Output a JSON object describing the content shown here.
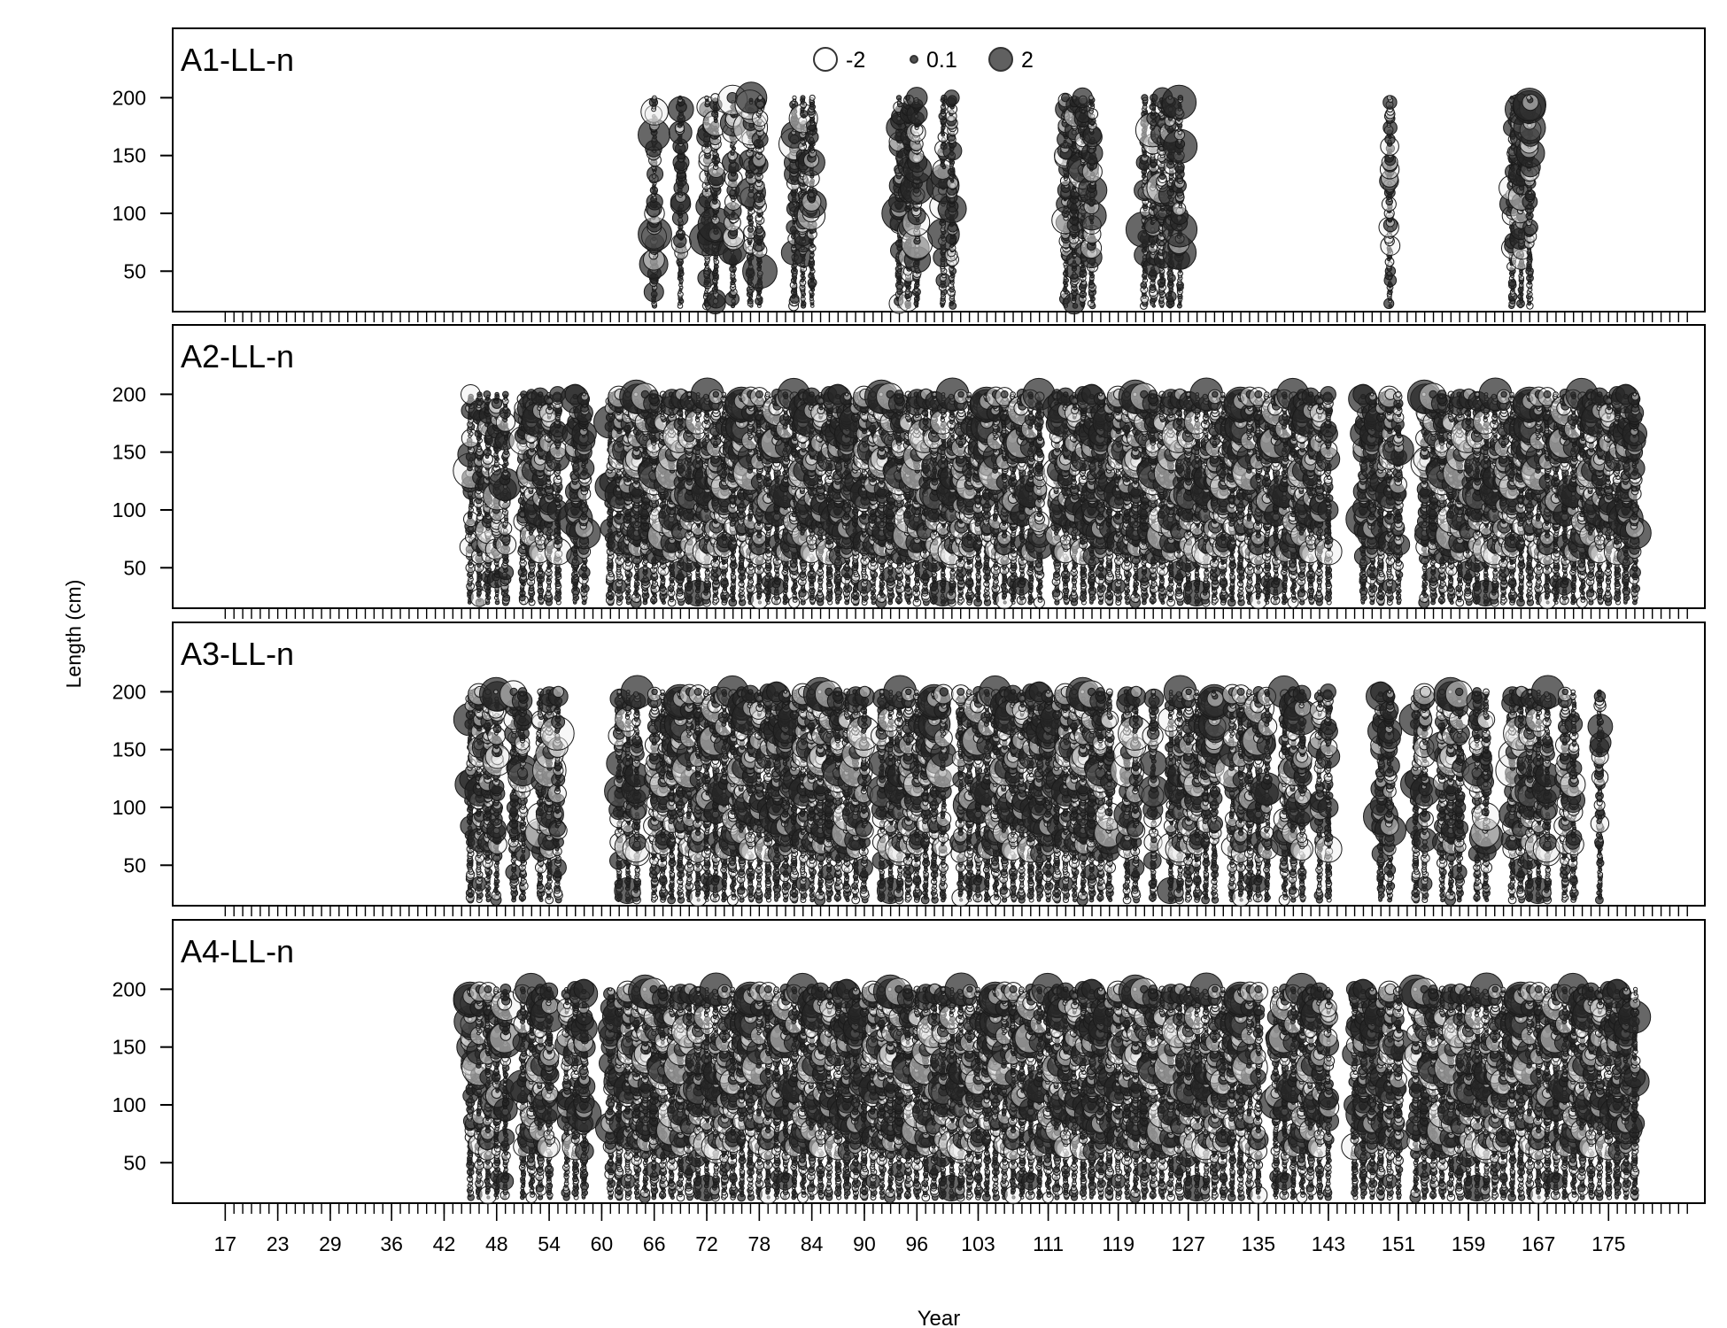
{
  "chart_data": {
    "type": "scatter",
    "subtype": "bubble residual plot",
    "xlabel": "Year",
    "ylabel": "Length (cm)",
    "x_tick_labels": [
      "17",
      "23",
      "29",
      "36",
      "42",
      "48",
      "54",
      "60",
      "66",
      "72",
      "78",
      "84",
      "90",
      "96",
      "103",
      "111",
      "119",
      "127",
      "135",
      "143",
      "151",
      "159",
      "167",
      "175"
    ],
    "x_tick_positions": [
      17,
      23,
      29,
      36,
      42,
      48,
      54,
      60,
      66,
      72,
      78,
      84,
      90,
      96,
      103,
      111,
      119,
      127,
      135,
      143,
      151,
      159,
      167,
      175
    ],
    "xlim": [
      11,
      186
    ],
    "ylim": [
      15,
      260
    ],
    "y_ticks": [
      50,
      100,
      150,
      200
    ],
    "y_tick_labels": [
      "50",
      "100",
      "150",
      "200"
    ],
    "length_bin_range": [
      20,
      200
    ],
    "length_bin_step": 2,
    "legend": {
      "position": "top-center",
      "items": [
        {
          "label": "-2",
          "value": -2,
          "fill": "none"
        },
        {
          "label": "0.1",
          "value": 0.1,
          "fill": "dark"
        },
        {
          "label": "2",
          "value": 2,
          "fill": "dark"
        }
      ]
    },
    "panels": [
      {
        "label": "A1-LL-n",
        "sample_times": [
          66,
          69,
          72,
          73,
          75,
          77,
          78,
          82,
          83,
          84,
          94,
          95,
          96,
          99,
          100,
          113,
          114,
          115,
          116,
          122,
          123,
          124,
          125,
          126,
          150,
          164,
          165,
          166
        ]
      },
      {
        "label": "A2-LL-n",
        "sample_times": [
          45,
          46,
          47,
          48,
          49,
          51,
          52,
          53,
          54,
          55,
          57,
          58,
          61,
          62,
          63,
          64,
          65,
          66,
          67,
          68,
          69,
          70,
          71,
          72,
          73,
          74,
          75,
          76,
          77,
          78,
          79,
          80,
          81,
          82,
          83,
          84,
          85,
          86,
          87,
          88,
          89,
          90,
          91,
          92,
          93,
          94,
          95,
          96,
          97,
          98,
          99,
          100,
          101,
          102,
          103,
          104,
          105,
          106,
          107,
          108,
          109,
          110,
          112,
          113,
          114,
          115,
          116,
          117,
          118,
          119,
          120,
          121,
          122,
          123,
          124,
          125,
          126,
          127,
          128,
          129,
          130,
          131,
          132,
          133,
          134,
          135,
          136,
          137,
          138,
          139,
          140,
          141,
          142,
          143,
          147,
          148,
          149,
          150,
          151,
          154,
          155,
          156,
          157,
          158,
          159,
          160,
          161,
          162,
          163,
          164,
          165,
          166,
          167,
          168,
          169,
          170,
          171,
          172,
          173,
          174,
          175,
          176,
          177,
          178
        ]
      },
      {
        "label": "A3-LL-n",
        "sample_times": [
          45,
          46,
          47,
          48,
          50,
          51,
          53,
          54,
          55,
          62,
          63,
          64,
          66,
          67,
          68,
          69,
          70,
          71,
          72,
          73,
          74,
          75,
          76,
          77,
          78,
          79,
          80,
          81,
          82,
          83,
          84,
          85,
          86,
          87,
          88,
          89,
          90,
          92,
          93,
          94,
          95,
          96,
          97,
          98,
          99,
          101,
          102,
          103,
          104,
          105,
          106,
          107,
          108,
          109,
          110,
          111,
          112,
          113,
          114,
          115,
          116,
          117,
          118,
          120,
          121,
          123,
          125,
          126,
          127,
          128,
          129,
          130,
          132,
          133,
          134,
          135,
          136,
          138,
          139,
          140,
          142,
          143,
          149,
          150,
          153,
          154,
          156,
          157,
          158,
          160,
          161,
          164,
          165,
          166,
          167,
          168,
          170,
          171,
          174
        ]
      },
      {
        "label": "A4-LL-n",
        "sample_times": [
          45,
          46,
          47,
          48,
          49,
          51,
          52,
          53,
          54,
          56,
          57,
          58,
          61,
          62,
          63,
          64,
          65,
          66,
          67,
          68,
          69,
          70,
          71,
          72,
          73,
          74,
          75,
          76,
          77,
          78,
          79,
          80,
          81,
          82,
          83,
          84,
          85,
          86,
          87,
          88,
          89,
          90,
          91,
          92,
          93,
          94,
          95,
          96,
          97,
          98,
          99,
          100,
          101,
          102,
          103,
          104,
          105,
          106,
          107,
          108,
          109,
          110,
          111,
          112,
          113,
          114,
          115,
          116,
          117,
          118,
          119,
          120,
          121,
          122,
          123,
          124,
          125,
          126,
          127,
          128,
          129,
          130,
          131,
          132,
          133,
          134,
          135,
          137,
          138,
          139,
          140,
          141,
          142,
          143,
          146,
          147,
          148,
          149,
          150,
          151,
          153,
          154,
          155,
          156,
          157,
          158,
          159,
          160,
          161,
          162,
          163,
          164,
          165,
          166,
          167,
          168,
          169,
          170,
          171,
          172,
          173,
          174,
          175,
          176,
          177,
          178
        ]
      }
    ]
  }
}
